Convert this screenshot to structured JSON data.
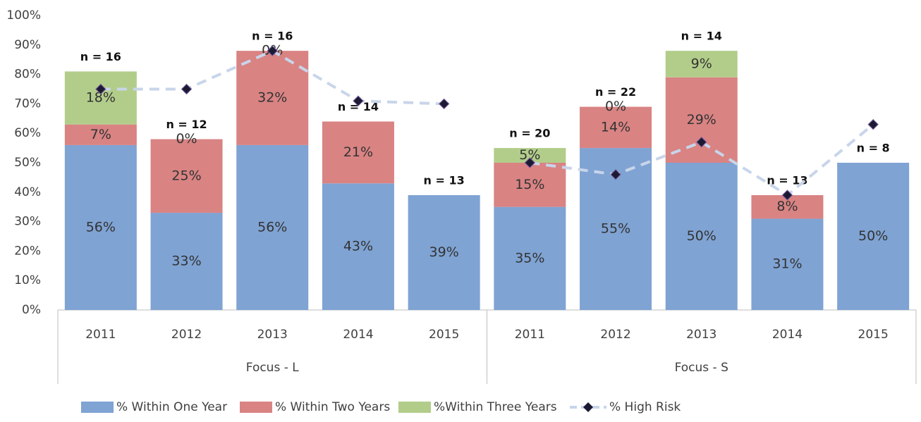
{
  "chart_data": {
    "type": "bar",
    "groups": [
      {
        "name": "Focus - L",
        "categories": [
          "2011",
          "2012",
          "2013",
          "2014",
          "2015"
        ]
      },
      {
        "name": "Focus - S",
        "categories": [
          "2011",
          "2012",
          "2013",
          "2014",
          "2015"
        ]
      }
    ],
    "series": [
      {
        "name": "% Within One Year",
        "color": "#7fa3d3",
        "values": [
          56,
          33,
          56,
          43,
          39,
          35,
          55,
          50,
          31,
          50
        ],
        "value_labels": [
          "56%",
          "33%",
          "56%",
          "43%",
          "39%",
          "35%",
          "55%",
          "50%",
          "31%",
          "50%"
        ]
      },
      {
        "name": "% Within Two Years",
        "color": "#d98383",
        "values": [
          7,
          25,
          32,
          21,
          null,
          15,
          14,
          29,
          8,
          null
        ],
        "value_labels": [
          "7%",
          "25%",
          "32%",
          "21%",
          null,
          "15%",
          "14%",
          "29%",
          "8%",
          null
        ]
      },
      {
        "name": "%Within Three Years",
        "color": "#b2cd8a",
        "values": [
          18,
          0,
          0,
          null,
          null,
          5,
          0,
          9,
          null,
          null
        ],
        "value_labels": [
          "18%",
          "0%",
          "0%",
          null,
          null,
          "5%",
          "0%",
          "9%",
          null,
          null
        ]
      },
      {
        "name": "% High Risk",
        "type": "line",
        "color": "#c8d5ea",
        "marker_color": "#1c1a33",
        "values": [
          75,
          75,
          88,
          71,
          70,
          50,
          46,
          57,
          39,
          63
        ]
      }
    ],
    "annotations": [
      "n = 16",
      "n = 12",
      "n = 16",
      "n = 14",
      "n = 13",
      "n = 20",
      "n = 22",
      "n = 14",
      "n = 13",
      "n = 8"
    ],
    "ylim": [
      0,
      100
    ],
    "yticks": [
      {
        "value": 0,
        "label": "0%"
      },
      {
        "value": 10,
        "label": "10%"
      },
      {
        "value": 20,
        "label": "20%"
      },
      {
        "value": 30,
        "label": "30%"
      },
      {
        "value": 40,
        "label": "40%"
      },
      {
        "value": 50,
        "label": "50%"
      },
      {
        "value": 60,
        "label": "60%"
      },
      {
        "value": 70,
        "label": "70%"
      },
      {
        "value": 80,
        "label": "80%"
      },
      {
        "value": 90,
        "label": "90%"
      },
      {
        "value": 100,
        "label": "100%"
      }
    ],
    "grid": false,
    "legend": "bottom"
  }
}
